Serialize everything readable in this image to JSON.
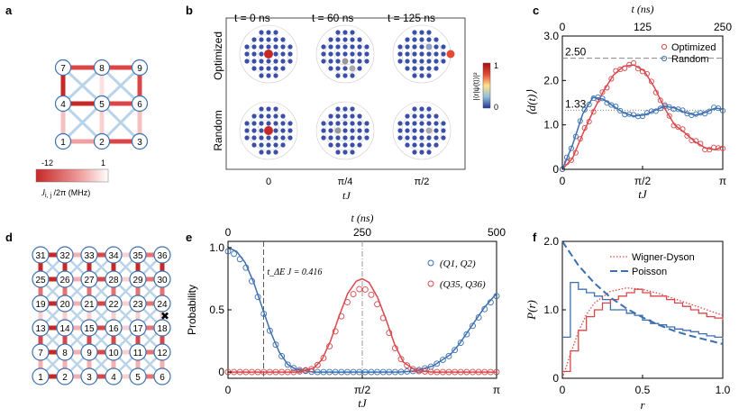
{
  "figure": {
    "panel_labels": [
      "a",
      "b",
      "c",
      "d",
      "e",
      "f"
    ]
  },
  "panel_a": {
    "nodes": [
      "1",
      "2",
      "3",
      "4",
      "5",
      "6",
      "7",
      "8",
      "9"
    ],
    "colorbar_min": "-12",
    "colorbar_max": "1",
    "colorbar_label": "J",
    "colorbar_label_sub": "i, j",
    "colorbar_label_rest": " /2π (MHz)"
  },
  "panel_b": {
    "time_labels": [
      "t = 0 ns",
      "t = 60 ns",
      "t = 125 ns"
    ],
    "row_labels": [
      "Optimized",
      "Random"
    ],
    "x_ticks": [
      "0",
      "π/4",
      "π/2"
    ],
    "xlabel": "tJ",
    "colorbar_label": "|⟨r|ψ(t)⟩|²",
    "colorbar_max": "1",
    "colorbar_min": "0"
  },
  "panel_d": {
    "rows": [
      [
        "31",
        "32",
        "33",
        "34",
        "35",
        "36"
      ],
      [
        "25",
        "26",
        "27",
        "28",
        "29",
        "30"
      ],
      [
        "19",
        "20",
        "21",
        "22",
        "23",
        "24"
      ],
      [
        "13",
        "14",
        "15",
        "16",
        "17",
        "18"
      ],
      [
        "7",
        "8",
        "9",
        "10",
        "11",
        "12"
      ],
      [
        "1",
        "2",
        "3",
        "4",
        "5",
        "6"
      ]
    ],
    "marker": "✖"
  },
  "colors": {
    "red": "#d9474a",
    "blue": "#3b6fb0",
    "light_blue": "#b9d3e8",
    "node_edge": "#3b6fb0"
  },
  "chart_data": [
    {
      "id": "c",
      "type": "line",
      "xlabel": "tJ",
      "ylabel": "⟨d(t)⟩",
      "top_xlabel": "t (ns)",
      "top_x_ticks": [
        "0",
        "125",
        "250"
      ],
      "x_ticks": [
        "0",
        "π/2",
        "π"
      ],
      "xlim": [
        0,
        3.1416
      ],
      "ylim": [
        0,
        3.0
      ],
      "y_ticks": [
        "0",
        "1.0",
        "2.0",
        "3.0"
      ],
      "legend": [
        "Optimized",
        "Random"
      ],
      "annotations": [
        "2.50",
        "1.33"
      ],
      "reference_lines": [
        2.5,
        1.33
      ],
      "series": [
        {
          "name": "Optimized",
          "x": [
            0,
            0.2,
            0.4,
            0.6,
            0.8,
            1.0,
            1.2,
            1.4,
            1.6,
            1.8,
            2.0,
            2.2,
            2.4,
            2.6,
            2.8,
            3.0,
            3.1416
          ],
          "values": [
            0,
            0.25,
            0.8,
            1.3,
            1.75,
            2.12,
            2.32,
            2.35,
            2.22,
            1.85,
            1.38,
            1.0,
            0.82,
            0.62,
            0.48,
            0.44,
            0.52
          ]
        },
        {
          "name": "Random",
          "x": [
            0,
            0.2,
            0.4,
            0.6,
            0.8,
            1.0,
            1.2,
            1.4,
            1.6,
            1.8,
            2.0,
            2.2,
            2.4,
            2.6,
            2.8,
            3.0,
            3.1416
          ],
          "values": [
            0,
            0.55,
            1.25,
            1.62,
            1.58,
            1.42,
            1.27,
            1.2,
            1.22,
            1.32,
            1.42,
            1.38,
            1.28,
            1.22,
            1.28,
            1.38,
            1.35
          ]
        }
      ]
    },
    {
      "id": "e",
      "type": "line",
      "xlabel": "tJ",
      "ylabel": "Probability",
      "top_xlabel": "t (ns)",
      "top_x_ticks": [
        "0",
        "250",
        "500"
      ],
      "x_ticks": [
        "0",
        "π/2",
        "π"
      ],
      "xlim": [
        0,
        3.1416
      ],
      "ylim": [
        -0.05,
        1.05
      ],
      "y_ticks": [
        "0",
        "0.5",
        "1.0"
      ],
      "annotation": "t_ΔE J = 0.416",
      "legend": [
        "(Q1, Q2)",
        "(Q35, Q36)"
      ],
      "series": [
        {
          "name": "(Q1, Q2)",
          "x": [
            0,
            0.1,
            0.2,
            0.3,
            0.4,
            0.5,
            0.6,
            0.7,
            0.8,
            0.9,
            1.0,
            1.2,
            1.5,
            1.8,
            2.0,
            2.2,
            2.4,
            2.6,
            2.7,
            2.8,
            2.9,
            3.0,
            3.1,
            3.1416
          ],
          "values": [
            1.0,
            0.97,
            0.88,
            0.72,
            0.52,
            0.32,
            0.16,
            0.06,
            0.02,
            0.01,
            0.0,
            0.0,
            0.0,
            0.0,
            0.0,
            0.01,
            0.05,
            0.14,
            0.22,
            0.32,
            0.42,
            0.52,
            0.6,
            0.63
          ]
        },
        {
          "name": "(Q35, Q36)",
          "x": [
            0,
            0.8,
            1.0,
            1.1,
            1.2,
            1.3,
            1.4,
            1.5,
            1.57,
            1.65,
            1.75,
            1.85,
            1.95,
            2.05,
            2.2,
            2.4,
            3.1416
          ],
          "values": [
            0,
            0,
            0.03,
            0.1,
            0.25,
            0.45,
            0.63,
            0.73,
            0.75,
            0.72,
            0.6,
            0.42,
            0.22,
            0.08,
            0.01,
            0,
            0
          ]
        }
      ]
    },
    {
      "id": "f",
      "type": "line",
      "xlabel": "r",
      "ylabel": "P(r)",
      "xlim": [
        0,
        1.0
      ],
      "ylim": [
        0,
        2.0
      ],
      "x_ticks": [
        "0",
        "0.5",
        "1.0"
      ],
      "y_ticks": [
        "0",
        "1.0",
        "2.0"
      ],
      "legend": [
        "Wigner-Dyson",
        "Poisson"
      ],
      "series": [
        {
          "name": "Wigner-Dyson",
          "x": [
            0,
            0.05,
            0.1,
            0.15,
            0.2,
            0.3,
            0.4,
            0.5,
            0.6,
            0.7,
            0.8,
            0.9,
            1.0
          ],
          "values": [
            0,
            0.35,
            0.68,
            0.93,
            1.1,
            1.27,
            1.32,
            1.3,
            1.24,
            1.16,
            1.08,
            1.0,
            0.92
          ]
        },
        {
          "name": "Poisson",
          "x": [
            0,
            0.1,
            0.2,
            0.3,
            0.4,
            0.5,
            0.6,
            0.7,
            0.8,
            0.9,
            1.0
          ],
          "values": [
            2.0,
            1.65,
            1.39,
            1.18,
            1.02,
            0.89,
            0.78,
            0.69,
            0.62,
            0.56,
            0.5
          ]
        },
        {
          "name": "Histogram (blue)",
          "x": [
            0.0,
            0.05,
            0.1,
            0.15,
            0.2,
            0.25,
            0.3,
            0.35,
            0.4,
            0.45,
            0.5,
            0.55,
            0.6,
            0.65,
            0.7,
            0.75,
            0.8,
            0.85,
            0.9,
            0.95,
            1.0
          ],
          "values": [
            0.6,
            1.4,
            1.3,
            1.25,
            1.2,
            1.15,
            1.0,
            1.0,
            0.95,
            0.92,
            0.85,
            0.8,
            0.78,
            0.75,
            0.72,
            0.7,
            0.68,
            0.65,
            0.62,
            0.6,
            0.58
          ]
        },
        {
          "name": "Histogram (red)",
          "x": [
            0.0,
            0.05,
            0.1,
            0.15,
            0.2,
            0.25,
            0.3,
            0.35,
            0.4,
            0.45,
            0.5,
            0.55,
            0.6,
            0.65,
            0.7,
            0.75,
            0.8,
            0.85,
            0.9,
            0.95,
            1.0
          ],
          "values": [
            0.1,
            0.4,
            0.7,
            0.9,
            1.0,
            1.1,
            1.15,
            1.2,
            1.25,
            1.3,
            1.25,
            1.2,
            1.2,
            1.15,
            1.1,
            1.05,
            1.0,
            0.95,
            0.9,
            0.88,
            0.85
          ]
        }
      ]
    }
  ]
}
